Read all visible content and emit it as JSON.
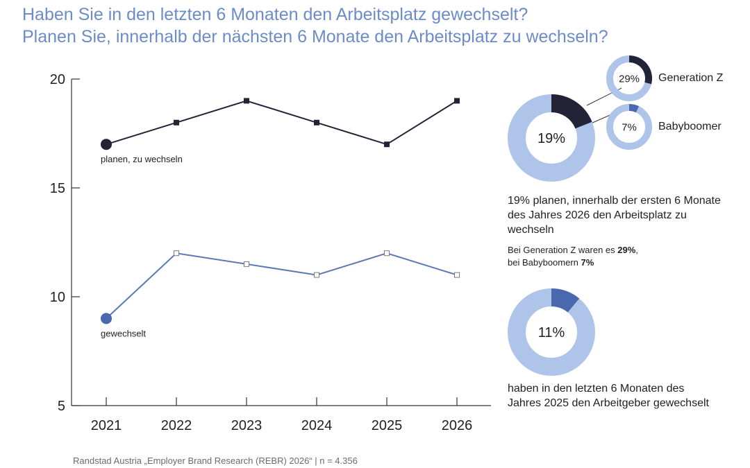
{
  "title": {
    "line1": "Haben Sie in den letzten 6 Monaten den Arbeitsplatz gewechselt?",
    "line2": "Planen Sie, innerhalb der nächsten 6 Monate den Arbeitsplatz zu wechseln?"
  },
  "colors": {
    "plan_line": "#232338",
    "changed_line": "#5a78b4",
    "changed_marker": "#4a68ad",
    "donut_bg": "#aec4e8",
    "donut_dark": "#232338",
    "donut_mid": "#4a68ad",
    "axis": "#333333"
  },
  "chart_data": {
    "type": "line",
    "x": [
      "2021",
      "2022",
      "2023",
      "2024",
      "2025",
      "2026"
    ],
    "ylim": [
      5,
      20
    ],
    "yticks": [
      "5",
      "10",
      "15",
      "20"
    ],
    "series": [
      {
        "name": "planen, zu wechseln",
        "values": [
          17,
          18,
          19,
          18,
          17,
          19
        ]
      },
      {
        "name": "gewechselt",
        "values": [
          9,
          12,
          11.5,
          11,
          12,
          11
        ]
      }
    ]
  },
  "donuts": {
    "plan": {
      "value": 19,
      "label": "19%"
    },
    "genz": {
      "value": 29,
      "label": "29%",
      "name": "Generation Z"
    },
    "boomer": {
      "value": 7,
      "label": "7%",
      "name": "Babyboomer"
    },
    "changed": {
      "value": 11,
      "label": "11%"
    }
  },
  "text": {
    "plan_desc_1": "19% planen, innerhalb der ersten 6 Monate",
    "plan_desc_2": "des Jahres 2026 den Arbeitsplatz zu",
    "plan_desc_3": "wechseln",
    "genz_prefix": "Bei Generation Z waren es ",
    "genz_value": "29%",
    "genz_suffix": ",",
    "boomer_prefix": "bei Babyboomern ",
    "boomer_value": "7%",
    "changed_desc_1": "haben in den letzten 6 Monaten des",
    "changed_desc_2": "Jahres 2025 den Arbeitgeber gewechselt"
  },
  "footer": "Randstad Austria „Employer Brand Research (REBR) 2026“ | n = 4.356"
}
